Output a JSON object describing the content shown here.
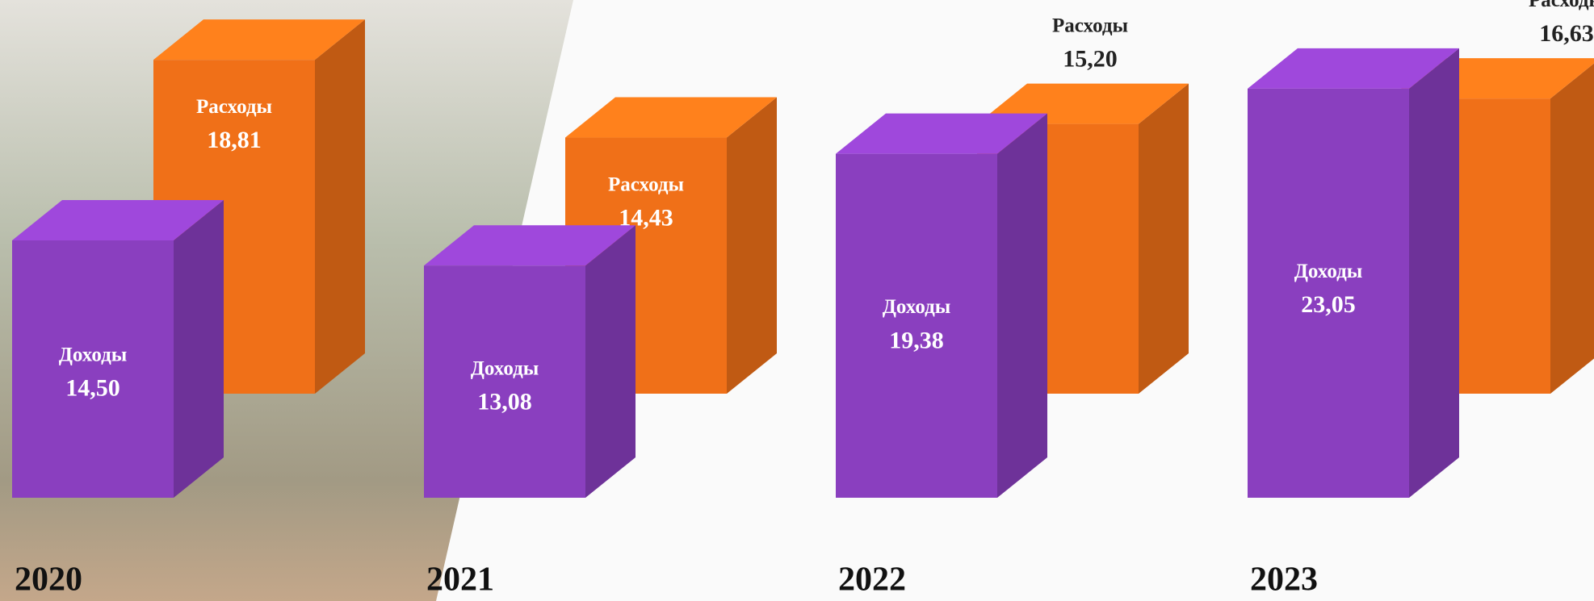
{
  "chart_data": {
    "type": "bar3d",
    "categories": [
      "2020",
      "2021",
      "2022",
      "2023"
    ],
    "series": [
      {
        "name": "Доходы",
        "color": "#8a3fbf",
        "values": [
          14.5,
          13.08,
          19.38,
          23.05
        ],
        "value_labels": [
          "14,50",
          "13,08",
          "19,38",
          "23,05"
        ]
      },
      {
        "name": "Расходы",
        "color": "#f07018",
        "values": [
          18.81,
          14.43,
          15.2,
          16.63
        ],
        "value_labels": [
          "18,81",
          "14,43",
          "15,20",
          "16,63"
        ]
      }
    ]
  }
}
